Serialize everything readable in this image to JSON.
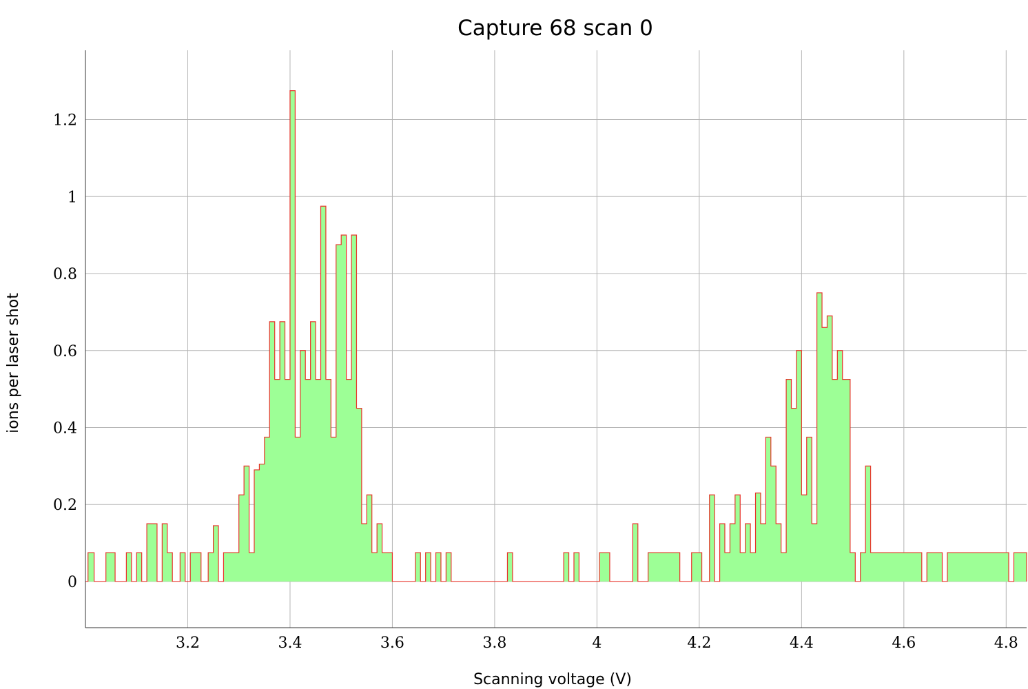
{
  "chart_data": {
    "type": "area",
    "title": "Capture 68 scan 0",
    "xlabel": "Scanning voltage (V)",
    "ylabel": "ions per laser shot",
    "xlim": [
      3.0,
      4.84
    ],
    "ylim": [
      -0.12,
      1.38
    ],
    "xticks": [
      3.2,
      3.4,
      3.6,
      3.8,
      4,
      4.2,
      4.4,
      4.6,
      4.8
    ],
    "xtick_labels": [
      "3.2",
      "3.4",
      "3.6",
      "3.8",
      "4",
      "4.2",
      "4.4",
      "4.6",
      "4.8"
    ],
    "yticks": [
      0,
      0.2,
      0.4,
      0.6,
      0.8,
      1,
      1.2
    ],
    "ytick_labels": [
      "0",
      "0.2",
      "0.4",
      "0.6",
      "0.8",
      "1",
      "1.2"
    ],
    "grid": true,
    "step": "stepped histogram",
    "fill_color": "#9dff96",
    "line_color": "#e8332a",
    "series": [
      {
        "x": [
          3.005,
          3.017,
          3.04,
          3.058,
          3.08,
          3.09,
          3.1,
          3.11,
          3.12,
          3.14,
          3.15,
          3.16,
          3.17,
          3.185,
          3.195,
          3.205,
          3.226,
          3.24,
          3.25,
          3.26,
          3.27,
          3.28,
          3.3,
          3.31,
          3.32,
          3.33,
          3.34,
          3.35,
          3.36,
          3.37,
          3.38,
          3.39,
          3.4,
          3.41,
          3.42,
          3.43,
          3.44,
          3.45,
          3.46,
          3.47,
          3.48,
          3.49,
          3.5,
          3.51,
          3.52,
          3.53,
          3.54,
          3.55,
          3.56,
          3.57,
          3.58,
          3.6,
          3.645,
          3.655,
          3.665,
          3.675,
          3.685,
          3.695,
          3.705,
          3.715,
          3.825,
          3.835,
          3.935,
          3.945,
          3.955,
          3.965,
          4.005,
          4.025,
          4.07,
          4.08,
          4.1,
          4.162,
          4.185,
          4.205,
          4.22,
          4.23,
          4.24,
          4.25,
          4.26,
          4.27,
          4.28,
          4.29,
          4.3,
          4.31,
          4.32,
          4.33,
          4.34,
          4.35,
          4.36,
          4.37,
          4.38,
          4.39,
          4.4,
          4.41,
          4.42,
          4.43,
          4.44,
          4.45,
          4.46,
          4.47,
          4.48,
          4.495,
          4.505,
          4.515,
          4.525,
          4.535,
          4.635,
          4.645,
          4.675,
          4.685,
          4.805,
          4.815,
          4.84
        ],
        "values": [
          0.075,
          0,
          0.075,
          0,
          0.075,
          0,
          0.075,
          0,
          0.15,
          0,
          0.15,
          0.075,
          0,
          0.075,
          0,
          0.075,
          0,
          0.075,
          0.145,
          0,
          0.075,
          0.075,
          0.225,
          0.3,
          0.075,
          0.29,
          0.305,
          0.375,
          0.675,
          0.525,
          0.675,
          0.525,
          1.275,
          0.375,
          0.6,
          0.525,
          0.675,
          0.525,
          0.975,
          0.525,
          0.375,
          0.875,
          0.9,
          0.525,
          0.9,
          0.45,
          0.15,
          0.225,
          0.075,
          0.15,
          0.075,
          0,
          0.075,
          0,
          0.075,
          0,
          0.075,
          0,
          0.075,
          0,
          0.075,
          0,
          0.075,
          0,
          0.075,
          0,
          0.075,
          0,
          0.15,
          0,
          0.075,
          0,
          0.075,
          0,
          0.225,
          0,
          0.15,
          0.075,
          0.15,
          0.225,
          0.075,
          0.15,
          0.075,
          0.23,
          0.15,
          0.375,
          0.3,
          0.15,
          0.075,
          0.525,
          0.45,
          0.6,
          0.225,
          0.375,
          0.15,
          0.75,
          0.66,
          0.69,
          0.525,
          0.6,
          0.525,
          0.075,
          0,
          0.075,
          0.3,
          0.075,
          0,
          0.075,
          0,
          0.075,
          0,
          0.075,
          0
        ]
      }
    ]
  }
}
